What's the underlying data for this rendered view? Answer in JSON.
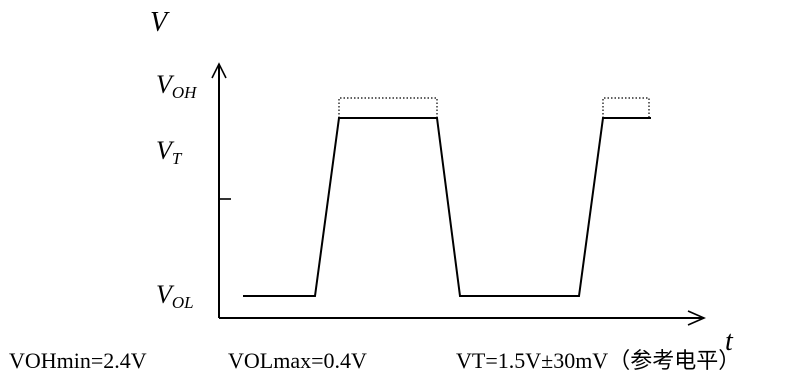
{
  "axes": {
    "y_label": "V",
    "x_label": "t"
  },
  "levels": {
    "voh": {
      "main": "V",
      "sub": "OH"
    },
    "vt": {
      "main": "V",
      "sub": "T"
    },
    "vol": {
      "main": "V",
      "sub": "OL"
    }
  },
  "footer": {
    "voh_min": "VOHmin=2.4V",
    "vol_max": "VOLmax=0.4V",
    "vt_ref": "VT=1.5V±30mV（参考电平）"
  }
}
